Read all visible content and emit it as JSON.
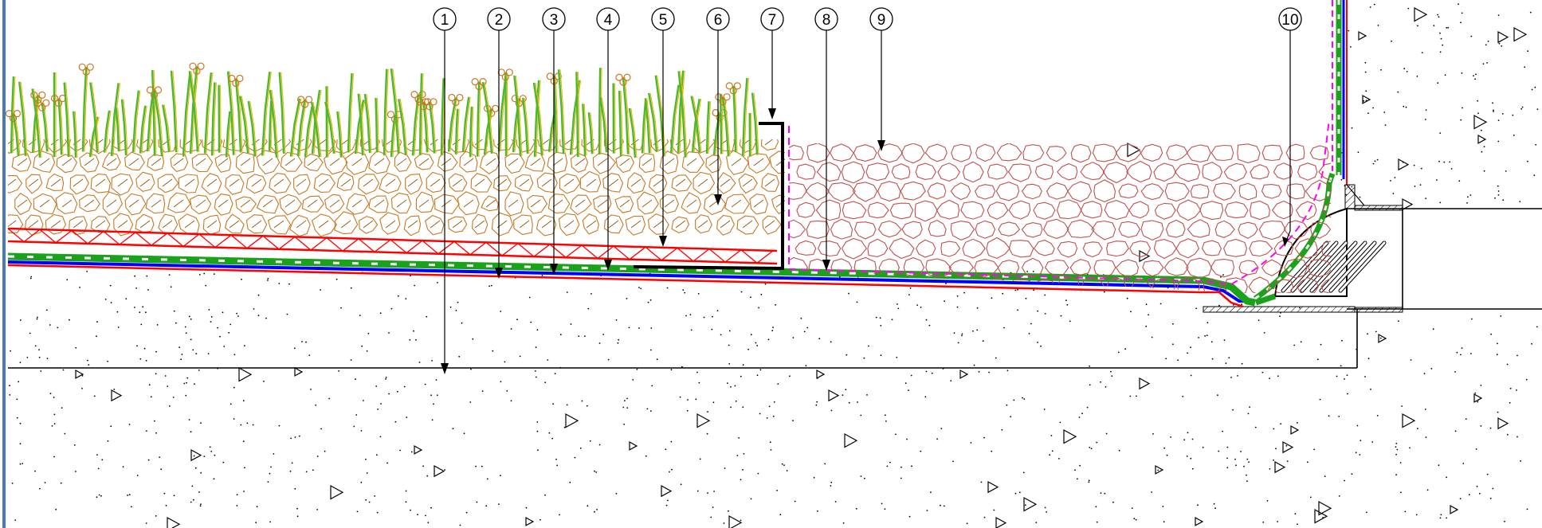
{
  "callouts": [
    {
      "id": "1",
      "label": "1"
    },
    {
      "id": "2",
      "label": "2"
    },
    {
      "id": "3",
      "label": "3"
    },
    {
      "id": "4",
      "label": "4"
    },
    {
      "id": "5",
      "label": "5"
    },
    {
      "id": "6",
      "label": "6"
    },
    {
      "id": "7",
      "label": "7"
    },
    {
      "id": "8",
      "label": "8"
    },
    {
      "id": "9",
      "label": "9"
    },
    {
      "id": "10",
      "label": "10"
    }
  ],
  "colors": {
    "background": "#ffffff",
    "frame_blue": "#4a78b8",
    "membrane_red": "#ff0000",
    "membrane_blue": "#0000ff",
    "drainage_green": "#1aa31a",
    "filter_magenta": "#ff00ff",
    "gravel_outline": "#c0504d",
    "soil_brown": "#c87820",
    "grass_green": "#4cb82a",
    "grass_yellow": "#e6b400",
    "concrete_ink": "#000000"
  },
  "icons": [
    "grass-vegetation-icon",
    "soil-substrate-icon",
    "gravel-stone-icon",
    "concrete-aggregate-icon",
    "roof-drain-icon"
  ]
}
